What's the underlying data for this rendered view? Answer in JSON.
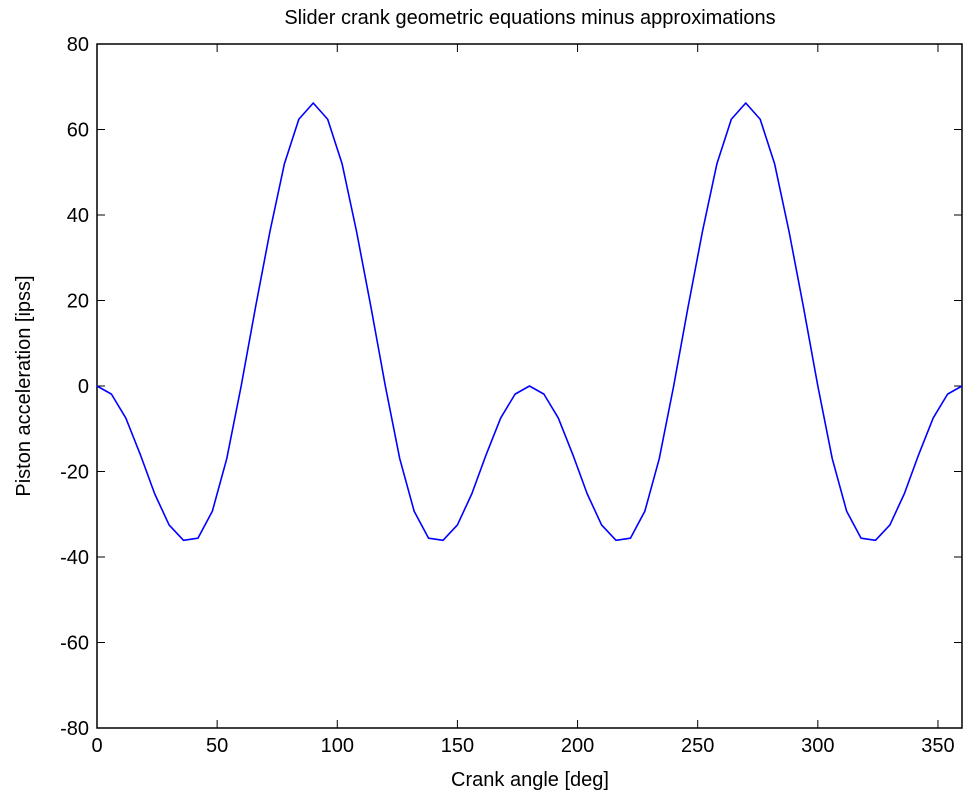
{
  "chart_data": {
    "type": "line",
    "title": "Slider crank geometric equations minus approximations",
    "xlabel": "Crank angle [deg]",
    "ylabel": "Piston acceleration [ipss]",
    "xlim": [
      0,
      360
    ],
    "ylim": [
      -80,
      80
    ],
    "x_ticks": [
      0,
      50,
      100,
      150,
      200,
      250,
      300,
      350
    ],
    "y_ticks": [
      -80,
      -60,
      -40,
      -20,
      0,
      20,
      40,
      60,
      80
    ],
    "grid": false,
    "line_color": "#0000ff",
    "series": [
      {
        "x": [
          0,
          6,
          12,
          18,
          24,
          30,
          36,
          42,
          48,
          54,
          60,
          66,
          72,
          78,
          84,
          90,
          96,
          102,
          108,
          114,
          120,
          126,
          132,
          138,
          144,
          150,
          156,
          162,
          168,
          174,
          180,
          186,
          192,
          198,
          204,
          210,
          216,
          222,
          228,
          234,
          240,
          246,
          252,
          258,
          264,
          270,
          276,
          282,
          288,
          294,
          300,
          306,
          312,
          318,
          324,
          330,
          336,
          342,
          348,
          354,
          360
        ],
        "y": [
          0,
          -1.9,
          -7.5,
          -16.0,
          -25.2,
          -32.5,
          -36.1,
          -35.6,
          -29.3,
          -17.0,
          0.0,
          18.5,
          36.2,
          52.0,
          62.4,
          66.2,
          62.4,
          52.0,
          36.2,
          18.5,
          0.0,
          -17.0,
          -29.3,
          -35.6,
          -36.1,
          -32.5,
          -25.2,
          -16.0,
          -7.5,
          -1.9,
          0,
          -1.9,
          -7.5,
          -16.0,
          -25.2,
          -32.5,
          -36.1,
          -35.6,
          -29.3,
          -17.0,
          0.0,
          18.5,
          36.2,
          52.0,
          62.4,
          66.2,
          62.4,
          52.0,
          36.2,
          18.5,
          0.0,
          -17.0,
          -29.3,
          -35.6,
          -36.1,
          -32.5,
          -25.2,
          -16.0,
          -7.5,
          -1.9,
          0
        ]
      }
    ]
  }
}
